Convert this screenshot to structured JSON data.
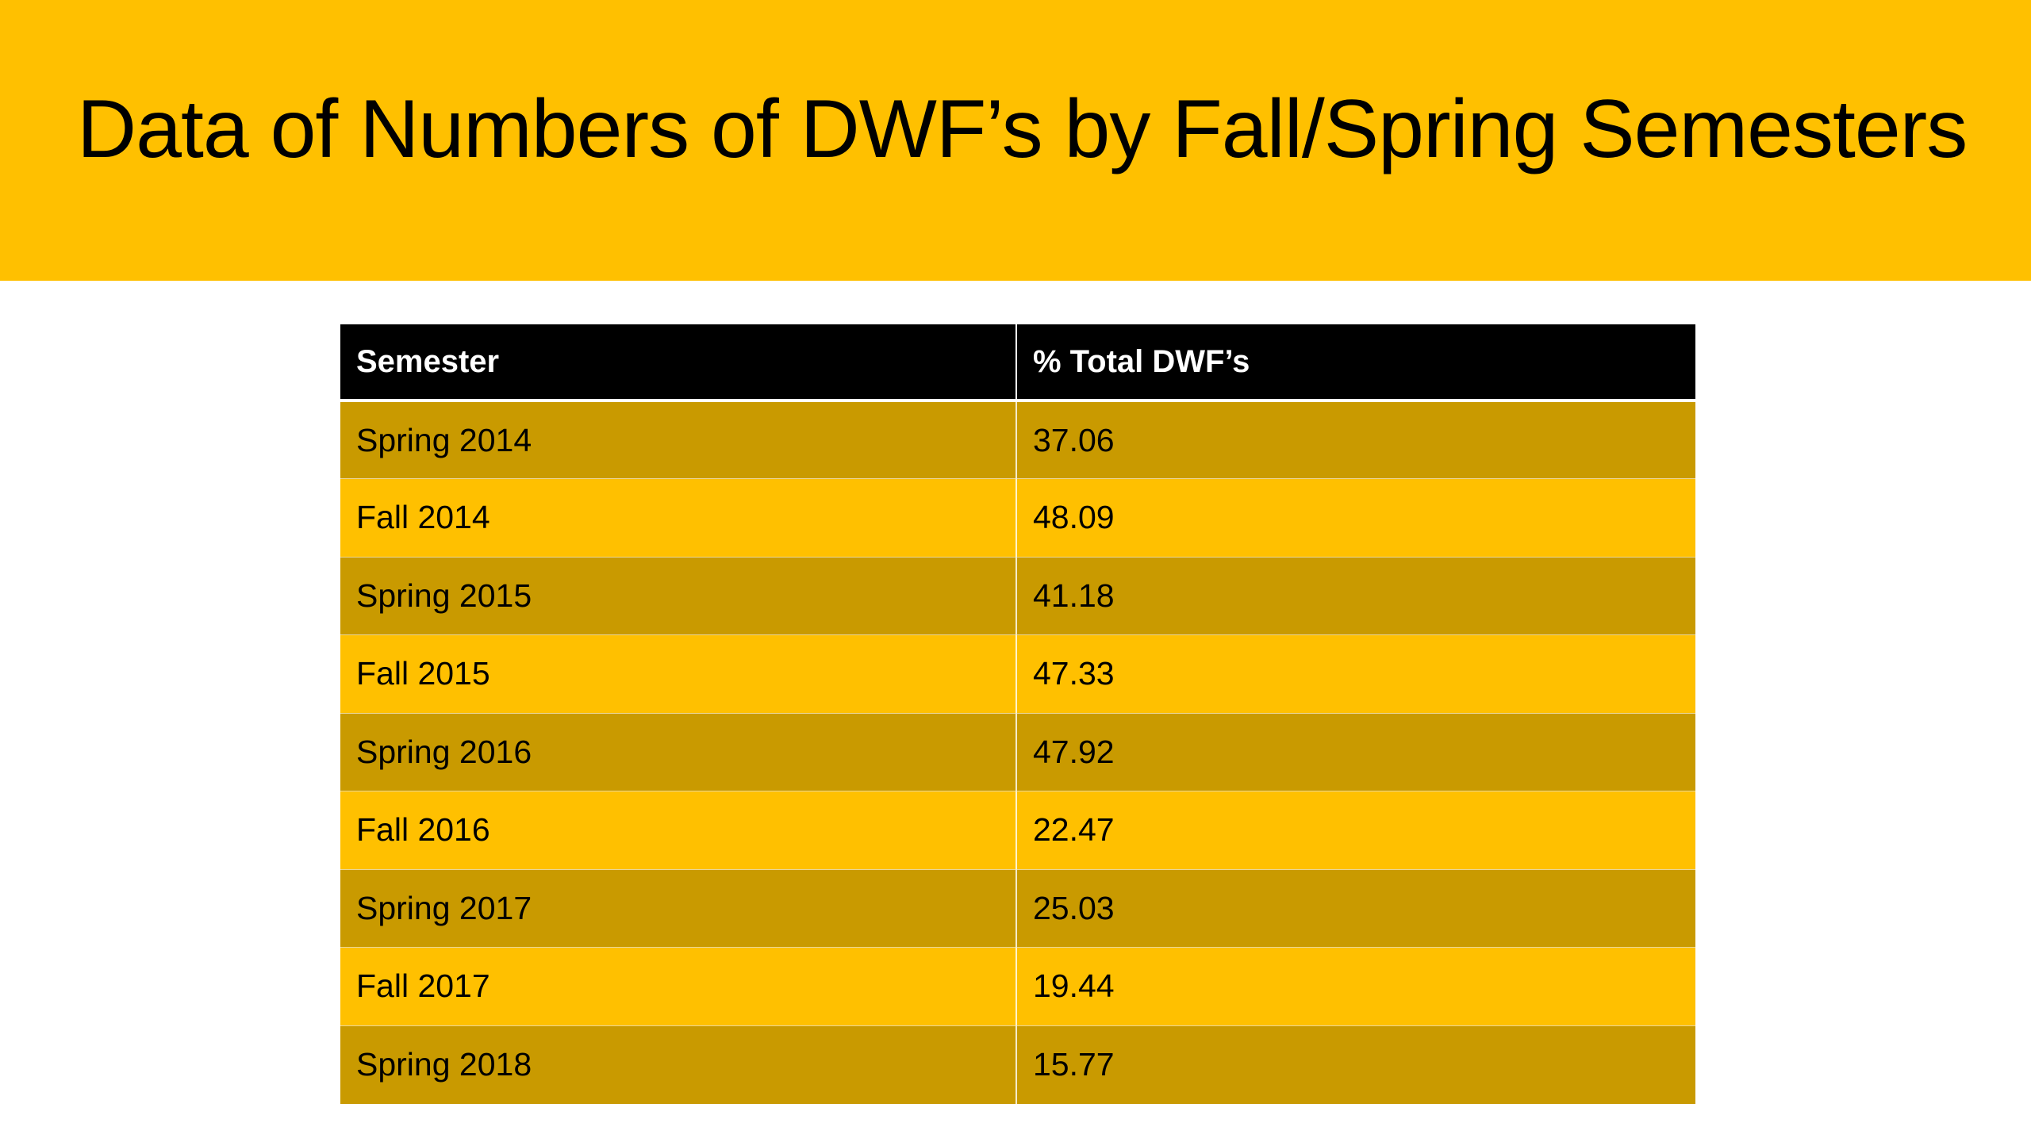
{
  "title": "Data of Numbers of DWF’s by Fall/Spring Semesters",
  "colors": {
    "title_band": "#FFC000",
    "header_bg": "#000000",
    "row_dark": "#C99A00",
    "row_light": "#FFC000"
  },
  "table": {
    "headers": [
      "Semester",
      "% Total DWF’s"
    ],
    "rows": [
      [
        "Spring 2014",
        "37.06"
      ],
      [
        "Fall 2014",
        "48.09"
      ],
      [
        "Spring 2015",
        "41.18"
      ],
      [
        "Fall 2015",
        "47.33"
      ],
      [
        "Spring 2016",
        "47.92"
      ],
      [
        "Fall 2016",
        "22.47"
      ],
      [
        "Spring 2017",
        "25.03"
      ],
      [
        "Fall 2017",
        "19.44"
      ],
      [
        "Spring 2018",
        "15.77"
      ]
    ]
  }
}
